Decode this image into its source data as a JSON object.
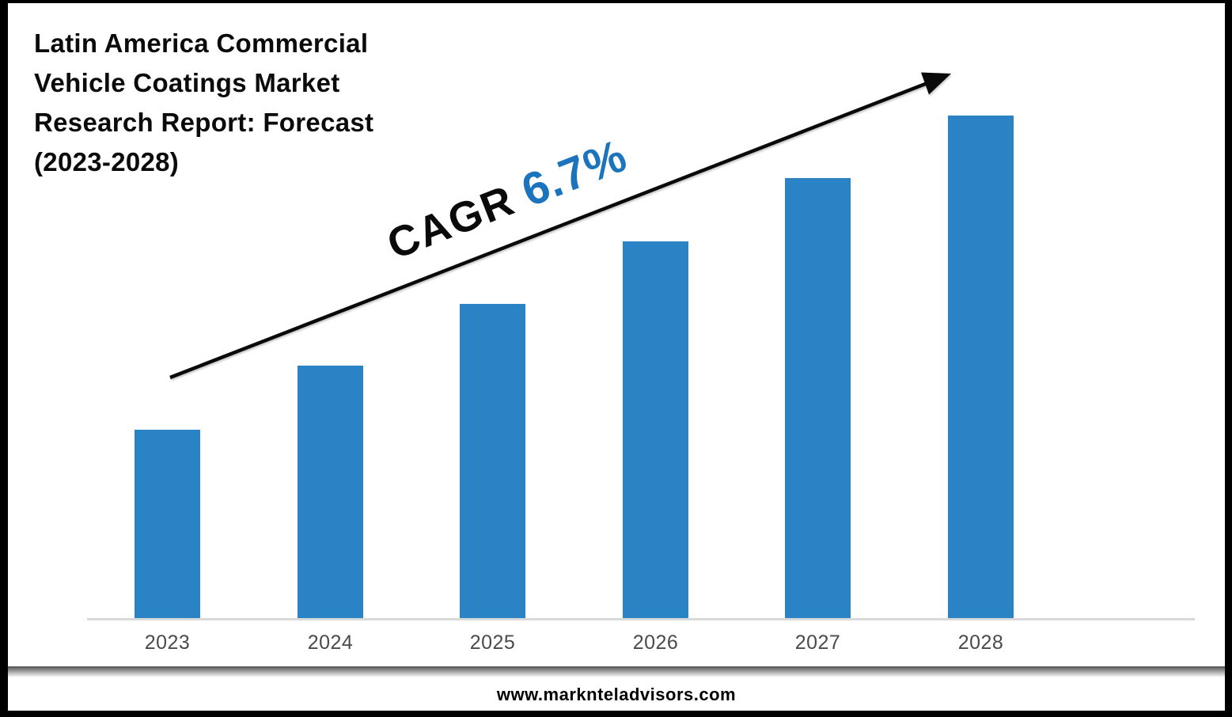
{
  "page": {
    "title": "Latin America Commercial\nVehicle Coatings Market\nResearch Report: Forecast\n(2023-2028)",
    "footer": {
      "website": "www.marknteladvisors.com"
    }
  },
  "annotation": {
    "label": "CAGR",
    "value": "6.7%"
  },
  "colors": {
    "bar": "#2a83c4",
    "accent_blue": "#1b74bc",
    "axis": "#d9d9d9",
    "category_label": "#4a4a4a",
    "text": "#0b0b0b"
  },
  "chart_data": {
    "type": "bar",
    "title": "Latin America Commercial Vehicle Coatings Market Research Report: Forecast (2023-2028)",
    "categories": [
      "2023",
      "2024",
      "2025",
      "2026",
      "2027",
      "2028"
    ],
    "values": [
      37.5,
      50.2,
      62.5,
      75.0,
      87.6,
      100
    ],
    "values_note": "relative bar heights in % of tallest (2028) bar; no value axis or data labels shown",
    "xlabel": "",
    "ylabel": "",
    "ylim": [
      0,
      100
    ],
    "grid": false,
    "legend": "none",
    "annotation": "CAGR 6.7% with rising trend arrow across bars",
    "bar_color": "#2a83c4",
    "trend": "increasing"
  }
}
